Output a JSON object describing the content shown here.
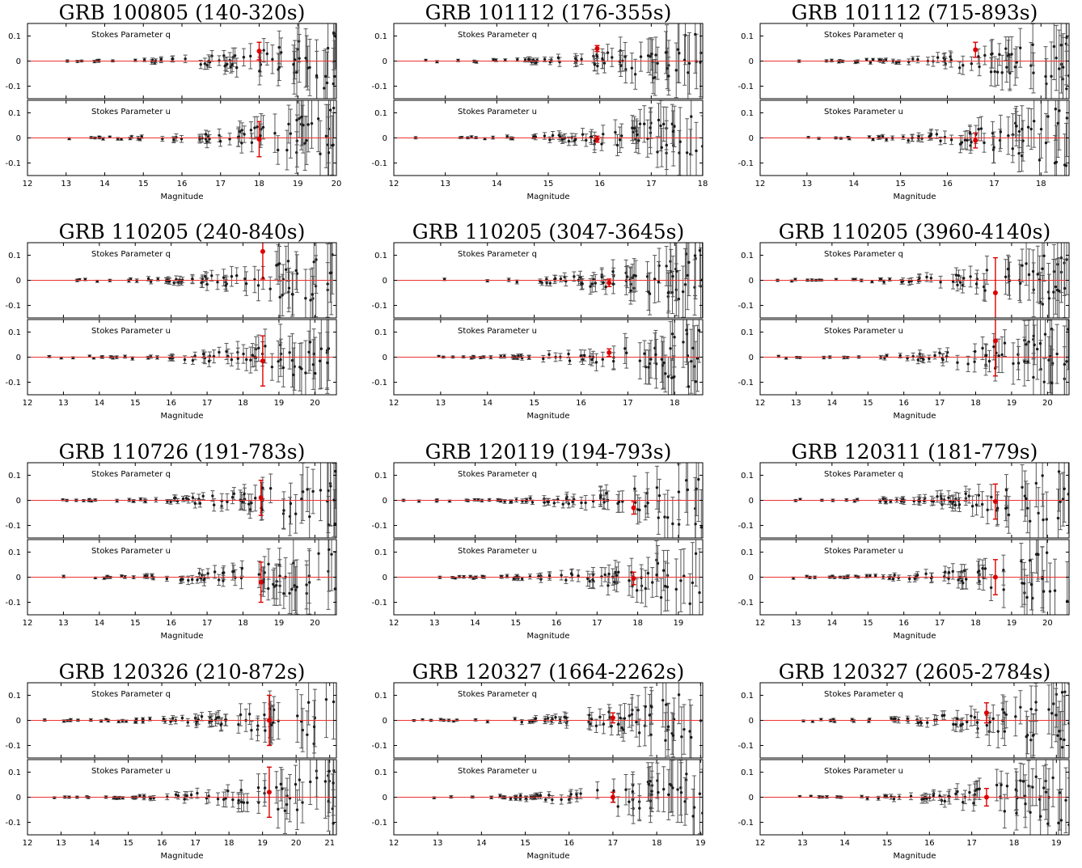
{
  "chart_data": [
    {
      "type": "scatter",
      "title": "GRB 100805 (140-320s)",
      "xlabel": "Magnitude",
      "xlim": [
        12,
        20
      ],
      "xticks": [
        12,
        13,
        14,
        15,
        16,
        17,
        18,
        19,
        20
      ],
      "ylim": [
        -0.15,
        0.15
      ],
      "yticks": [
        0.1,
        0,
        -0.1
      ],
      "yticklabels": [
        "0.1",
        "0",
        "-0.1"
      ],
      "panels": [
        {
          "label": "Stokes Parameter q",
          "highlight": {
            "x": 18.0,
            "y": 0.04,
            "err": 0.035
          }
        },
        {
          "label": "Stokes Parameter u",
          "highlight": {
            "x": 18.0,
            "y": -0.005,
            "err": 0.07
          }
        }
      ],
      "faint_limit": 20
    },
    {
      "type": "scatter",
      "title": "GRB 101112 (176-355s)",
      "xlabel": "Magnitude",
      "xlim": [
        12,
        18
      ],
      "xticks": [
        12,
        13,
        14,
        15,
        16,
        17,
        18
      ],
      "ylim": [
        -0.15,
        0.15
      ],
      "yticks": [
        0.1,
        0,
        -0.1
      ],
      "yticklabels": [
        "0.1",
        "0",
        "-0.1"
      ],
      "panels": [
        {
          "label": "Stokes Parameter q",
          "highlight": {
            "x": 15.95,
            "y": 0.05,
            "err": 0.012
          }
        },
        {
          "label": "Stokes Parameter u",
          "highlight": {
            "x": 15.95,
            "y": -0.005,
            "err": 0.012
          }
        }
      ],
      "faint_limit": 18
    },
    {
      "type": "scatter",
      "title": "GRB 101112 (715-893s)",
      "xlabel": "Magnitude",
      "xlim": [
        12,
        18.6
      ],
      "xticks": [
        12,
        13,
        14,
        15,
        16,
        17,
        18
      ],
      "ylim": [
        -0.15,
        0.15
      ],
      "yticks": [
        0.1,
        0,
        -0.1
      ],
      "yticklabels": [
        "0.1",
        "0",
        "-0.1"
      ],
      "panels": [
        {
          "label": "Stokes Parameter q",
          "highlight": {
            "x": 16.6,
            "y": 0.045,
            "err": 0.03
          }
        },
        {
          "label": "Stokes Parameter u",
          "highlight": {
            "x": 16.6,
            "y": -0.01,
            "err": 0.03
          }
        }
      ],
      "faint_limit": 18.6
    },
    {
      "type": "scatter",
      "title": "GRB 110205 (240-840s)",
      "xlabel": "Magnitude",
      "xlim": [
        12,
        20.6
      ],
      "xticks": [
        12,
        13,
        14,
        15,
        16,
        17,
        18,
        19,
        20
      ],
      "ylim": [
        -0.15,
        0.15
      ],
      "yticks": [
        0.1,
        0,
        -0.1
      ],
      "yticklabels": [
        "0.1",
        "0",
        "-0.1"
      ],
      "panels": [
        {
          "label": "Stokes Parameter q",
          "highlight": {
            "x": 18.55,
            "y": 0.115,
            "err": 0.11
          }
        },
        {
          "label": "Stokes Parameter u",
          "highlight": {
            "x": 18.55,
            "y": -0.015,
            "err": 0.1
          }
        }
      ],
      "faint_limit": 20.5
    },
    {
      "type": "scatter",
      "title": "GRB 110205 (3047-3645s)",
      "xlabel": "Magnitude",
      "xlim": [
        12,
        18.6
      ],
      "xticks": [
        12,
        13,
        14,
        15,
        16,
        17,
        18
      ],
      "ylim": [
        -0.15,
        0.15
      ],
      "yticks": [
        0.1,
        0,
        -0.1
      ],
      "yticklabels": [
        "0.1",
        "0",
        "-0.1"
      ],
      "panels": [
        {
          "label": "Stokes Parameter q",
          "highlight": {
            "x": 16.6,
            "y": -0.01,
            "err": 0.015
          }
        },
        {
          "label": "Stokes Parameter u",
          "highlight": {
            "x": 16.6,
            "y": 0.018,
            "err": 0.015
          }
        }
      ],
      "faint_limit": 18.6
    },
    {
      "type": "scatter",
      "title": "GRB 110205 (3960-4140s)",
      "xlabel": "Magnitude",
      "xlim": [
        12,
        20.6
      ],
      "xticks": [
        12,
        13,
        14,
        15,
        16,
        17,
        18,
        19,
        20
      ],
      "ylim": [
        -0.15,
        0.15
      ],
      "yticks": [
        0.1,
        0,
        -0.1
      ],
      "yticklabels": [
        "0.1",
        "0",
        "-0.1"
      ],
      "panels": [
        {
          "label": "Stokes Parameter q",
          "highlight": {
            "x": 18.55,
            "y": -0.05,
            "err": 0.14
          }
        },
        {
          "label": "Stokes Parameter u",
          "highlight": {
            "x": 18.55,
            "y": 0.065,
            "err": 0.14
          }
        }
      ],
      "faint_limit": 20.6
    },
    {
      "type": "scatter",
      "title": "GRB 110726 (191-783s)",
      "xlabel": "Magnitude",
      "xlim": [
        12,
        20.6
      ],
      "xticks": [
        12,
        13,
        14,
        15,
        16,
        17,
        18,
        19,
        20
      ],
      "ylim": [
        -0.15,
        0.15
      ],
      "yticks": [
        0.1,
        0,
        -0.1
      ],
      "yticklabels": [
        "0.1",
        "0",
        "-0.1"
      ],
      "panels": [
        {
          "label": "Stokes Parameter q",
          "highlight": {
            "x": 18.5,
            "y": 0.01,
            "err": 0.07
          }
        },
        {
          "label": "Stokes Parameter u",
          "highlight": {
            "x": 18.5,
            "y": -0.02,
            "err": 0.08
          }
        }
      ],
      "faint_limit": 20.6
    },
    {
      "type": "scatter",
      "title": "GRB 120119 (194-793s)",
      "xlabel": "Magnitude",
      "xlim": [
        12,
        19.6
      ],
      "xticks": [
        12,
        13,
        14,
        15,
        16,
        17,
        18,
        19
      ],
      "ylim": [
        -0.15,
        0.15
      ],
      "yticks": [
        0.1,
        0,
        -0.1
      ],
      "yticklabels": [
        "0.1",
        "0",
        "-0.1"
      ],
      "panels": [
        {
          "label": "Stokes Parameter q",
          "highlight": {
            "x": 17.9,
            "y": -0.03,
            "err": 0.025
          }
        },
        {
          "label": "Stokes Parameter u",
          "highlight": {
            "x": 17.9,
            "y": -0.005,
            "err": 0.025
          }
        }
      ],
      "faint_limit": 19.6
    },
    {
      "type": "scatter",
      "title": "GRB 120311 (181-779s)",
      "xlabel": "Magnitude",
      "xlim": [
        12,
        20.6
      ],
      "xticks": [
        12,
        13,
        14,
        15,
        16,
        17,
        18,
        19,
        20
      ],
      "ylim": [
        -0.15,
        0.15
      ],
      "yticks": [
        0.1,
        0,
        -0.1
      ],
      "yticklabels": [
        "0.1",
        "0",
        "-0.1"
      ],
      "panels": [
        {
          "label": "Stokes Parameter q",
          "highlight": {
            "x": 18.55,
            "y": -0.005,
            "err": 0.07
          }
        },
        {
          "label": "Stokes Parameter u",
          "highlight": {
            "x": 18.55,
            "y": 0.0,
            "err": 0.07
          }
        }
      ],
      "faint_limit": 20.6
    },
    {
      "type": "scatter",
      "title": "GRB 120326 (210-872s)",
      "xlabel": "Magnitude",
      "xlim": [
        12,
        21.2
      ],
      "xticks": [
        12,
        13,
        14,
        15,
        16,
        17,
        18,
        19,
        20,
        21
      ],
      "ylim": [
        -0.15,
        0.15
      ],
      "yticks": [
        0.1,
        0,
        -0.1
      ],
      "yticklabels": [
        "0.1",
        "0",
        "-0.1"
      ],
      "panels": [
        {
          "label": "Stokes Parameter q",
          "highlight": {
            "x": 19.2,
            "y": 0.0,
            "err": 0.1
          }
        },
        {
          "label": "Stokes Parameter u",
          "highlight": {
            "x": 19.2,
            "y": 0.02,
            "err": 0.1
          }
        }
      ],
      "faint_limit": 21.2
    },
    {
      "type": "scatter",
      "title": "GRB 120327 (1664-2262s)",
      "xlabel": "Magnitude",
      "xlim": [
        12,
        19.05
      ],
      "xticks": [
        12,
        13,
        14,
        15,
        16,
        17,
        18,
        19
      ],
      "ylim": [
        -0.15,
        0.15
      ],
      "yticks": [
        0.1,
        0,
        -0.1
      ],
      "yticklabels": [
        "0.1",
        "0",
        "-0.1"
      ],
      "panels": [
        {
          "label": "Stokes Parameter q",
          "highlight": {
            "x": 17.0,
            "y": 0.01,
            "err": 0.02
          }
        },
        {
          "label": "Stokes Parameter u",
          "highlight": {
            "x": 17.0,
            "y": 0.0,
            "err": 0.02
          }
        }
      ],
      "faint_limit": 19.05
    },
    {
      "type": "scatter",
      "title": "GRB 120327 (2605-2784s)",
      "xlabel": "Magnitude",
      "xlim": [
        12,
        19.3
      ],
      "xticks": [
        12,
        13,
        14,
        15,
        16,
        17,
        18,
        19
      ],
      "ylim": [
        -0.15,
        0.15
      ],
      "yticks": [
        0.1,
        0,
        -0.1
      ],
      "yticklabels": [
        "0.1",
        "0",
        "-0.1"
      ],
      "panels": [
        {
          "label": "Stokes Parameter q",
          "highlight": {
            "x": 17.35,
            "y": 0.03,
            "err": 0.04
          }
        },
        {
          "label": "Stokes Parameter u",
          "highlight": {
            "x": 17.35,
            "y": 0.0,
            "err": 0.035
          }
        }
      ],
      "faint_limit": 19.3
    }
  ],
  "colors": {
    "points": "#1a1a1a",
    "errorbars": "#555555",
    "highlight": "#dd0000",
    "zero_line": "#ee3333",
    "axes": "#000000"
  }
}
